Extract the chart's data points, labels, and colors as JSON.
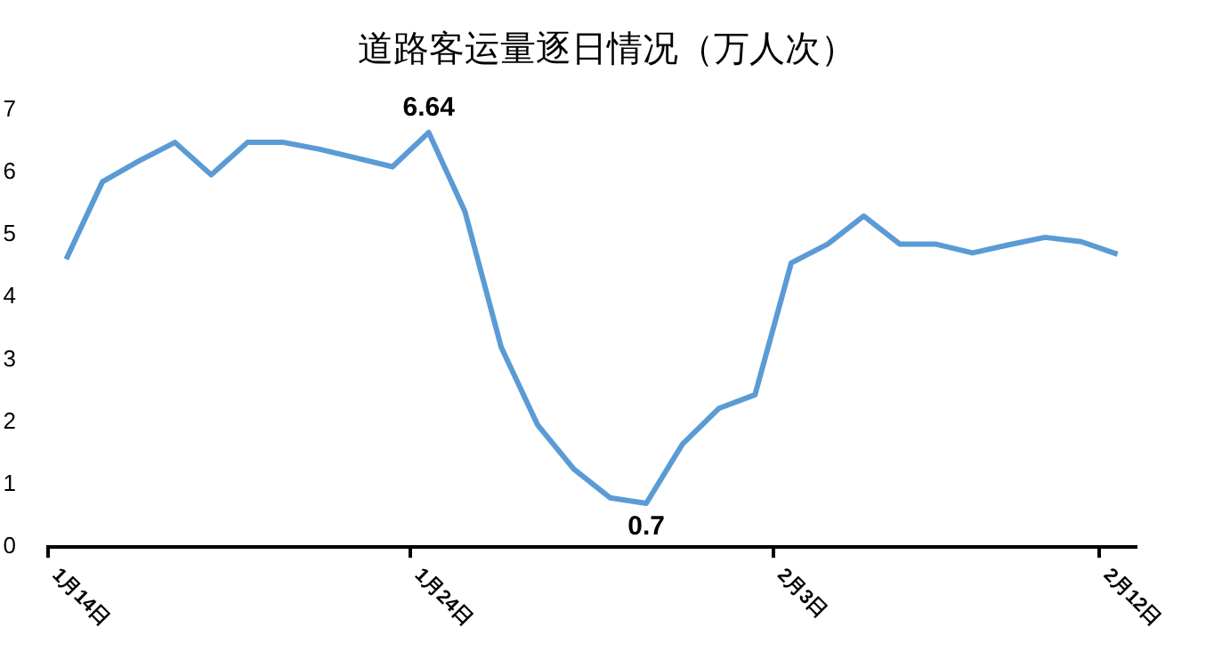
{
  "chart_data": {
    "type": "line",
    "title": "道路客运量逐日情况（万人次）",
    "categories": [
      "1月14日",
      null,
      null,
      null,
      null,
      null,
      null,
      null,
      null,
      null,
      "1月24日",
      null,
      null,
      null,
      null,
      null,
      null,
      null,
      null,
      null,
      "2月3日",
      null,
      null,
      null,
      null,
      null,
      null,
      null,
      null,
      "2月12日"
    ],
    "series": [
      {
        "color": "#5b9bd5",
        "values": [
          4.61,
          5.85,
          6.18,
          6.48,
          5.96,
          6.48,
          6.48,
          6.37,
          6.23,
          6.09,
          6.64,
          5.37,
          3.2,
          1.96,
          1.25,
          0.79,
          0.7,
          1.65,
          2.22,
          2.44,
          4.55,
          4.85,
          5.3,
          4.85,
          4.85,
          4.71,
          4.84,
          4.96,
          4.89,
          4.69
        ],
        "value_labels": [
          null,
          null,
          null,
          null,
          null,
          null,
          null,
          null,
          null,
          null,
          "6.64",
          null,
          null,
          null,
          null,
          null,
          "0.7",
          null,
          null,
          null,
          null,
          null,
          null,
          null,
          null,
          null,
          null,
          null,
          null,
          null
        ]
      }
    ],
    "ylim": [
      0,
      7
    ],
    "yticks": [
      0,
      1,
      2,
      3,
      4,
      5,
      6,
      7
    ],
    "grid": false,
    "legend": false,
    "marker": "none",
    "line_style": "solid"
  }
}
